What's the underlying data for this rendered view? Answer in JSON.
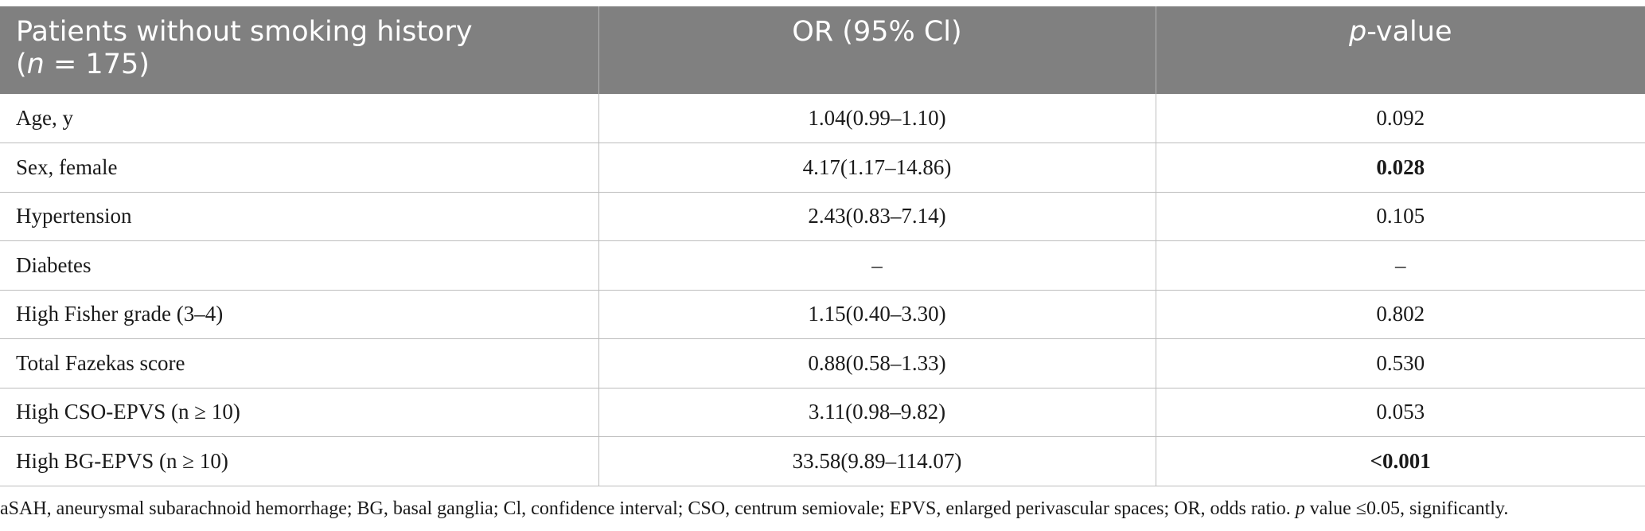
{
  "table": {
    "header": {
      "col1_line1": "Patients without smoking history",
      "col1_n_prefix": "(",
      "col1_n_var": "n",
      "col1_n_suffix": " = 175)",
      "col2": "OR (95% Cl)",
      "col3_var": "p",
      "col3_suffix": "-value"
    },
    "rows": [
      {
        "label": "Age, y",
        "or": "1.04(0.99–1.10)",
        "p": "0.092",
        "p_bold": false
      },
      {
        "label": "Sex, female",
        "or": "4.17(1.17–14.86)",
        "p": "0.028",
        "p_bold": true
      },
      {
        "label": "Hypertension",
        "or": "2.43(0.83–7.14)",
        "p": "0.105",
        "p_bold": false
      },
      {
        "label": "Diabetes",
        "or": "–",
        "p": "–",
        "p_bold": false
      },
      {
        "label": "High Fisher grade (3–4)",
        "or": "1.15(0.40–3.30)",
        "p": "0.802",
        "p_bold": false
      },
      {
        "label": "Total Fazekas score",
        "or": "0.88(0.58–1.33)",
        "p": "0.530",
        "p_bold": false
      },
      {
        "label": "High CSO-EPVS (n ≥ 10)",
        "or": "3.11(0.98–9.82)",
        "p": "0.053",
        "p_bold": false
      },
      {
        "label": "High BG-EPVS (n ≥ 10)",
        "or": "33.58(9.89–114.07)",
        "p": "<0.001",
        "p_bold": true
      }
    ]
  },
  "footnote": {
    "text_before": "aSAH, aneurysmal subarachnoid hemorrhage; BG, basal ganglia; Cl, confidence interval; CSO, centrum semiovale; EPVS, enlarged perivascular spaces; OR, odds ratio. ",
    "p_var": "p",
    "text_after": " value ≤0.05, significantly."
  }
}
